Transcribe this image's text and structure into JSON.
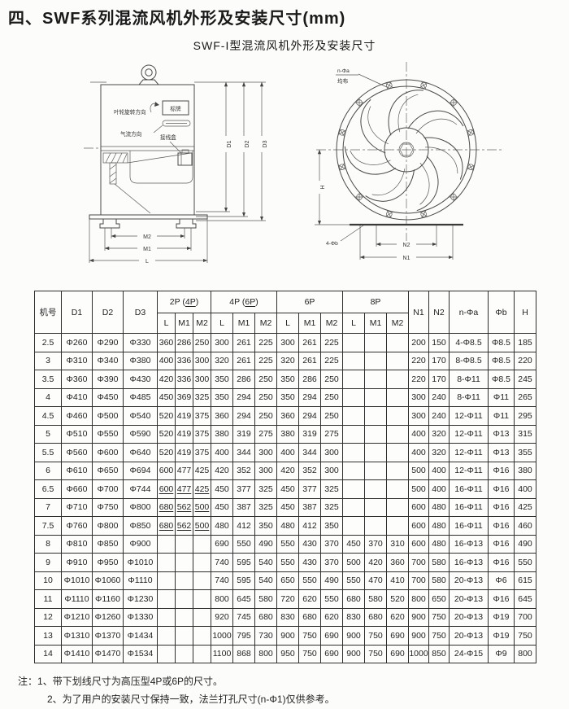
{
  "page": {
    "title": "四、SWF系列混流风机外形及安装尺寸(mm)",
    "subtitle": "SWF-I型混流风机外形及安装尺寸"
  },
  "drawing": {
    "side_view": {
      "rotation_label": "叶轮旋转方向",
      "nameplate_label": "标牌",
      "airflow_label": "气流方向",
      "junction_box_label": "接线盒",
      "dim_d1": "D1",
      "dim_d2": "D2",
      "dim_d3": "D3",
      "dim_m2": "M2",
      "dim_m1": "M1",
      "dim_l": "L"
    },
    "front_view": {
      "holes_label": "n-Φa",
      "holes_label2": "均布",
      "feet_holes_label": "4-Φb",
      "dim_n2": "N2",
      "dim_n1": "N1",
      "dim_h": "H"
    }
  },
  "table": {
    "headers": {
      "jihao": "机号",
      "d1": "D1",
      "d2": "D2",
      "d3": "D3",
      "g2p_pre": "2P (",
      "g2p_u": "4P",
      "g2p_post": ")",
      "g4p_pre": "4P (",
      "g4p_u": "6P",
      "g4p_post": ")",
      "g6p": "6P",
      "g8p": "8P",
      "l": "L",
      "m1": "M1",
      "m2": "M2",
      "n1": "N1",
      "n2": "N2",
      "nfa": "n-Φa",
      "fb": "Φb",
      "h": "H"
    },
    "rows": [
      {
        "no": "2.5",
        "d1": "Φ260",
        "d2": "Φ290",
        "d3": "Φ330",
        "p2": [
          "360",
          "286",
          "250"
        ],
        "p2u": false,
        "p4": [
          "300",
          "261",
          "225"
        ],
        "p6": [
          "300",
          "261",
          "225"
        ],
        "p8": [
          "",
          "",
          ""
        ],
        "n1": "200",
        "n2": "150",
        "na": "4-Φ8.5",
        "fb": "Φ8.5",
        "h": "185"
      },
      {
        "no": "3",
        "d1": "Φ310",
        "d2": "Φ340",
        "d3": "Φ380",
        "p2": [
          "400",
          "336",
          "300"
        ],
        "p2u": false,
        "p4": [
          "320",
          "261",
          "225"
        ],
        "p6": [
          "320",
          "261",
          "225"
        ],
        "p8": [
          "",
          "",
          ""
        ],
        "n1": "220",
        "n2": "170",
        "na": "8-Φ8.5",
        "fb": "Φ8.5",
        "h": "220"
      },
      {
        "no": "3.5",
        "d1": "Φ360",
        "d2": "Φ390",
        "d3": "Φ430",
        "p2": [
          "420",
          "336",
          "300"
        ],
        "p2u": false,
        "p4": [
          "350",
          "286",
          "250"
        ],
        "p6": [
          "350",
          "286",
          "250"
        ],
        "p8": [
          "",
          "",
          ""
        ],
        "n1": "220",
        "n2": "170",
        "na": "8-Φ11",
        "fb": "Φ8.5",
        "h": "245"
      },
      {
        "no": "4",
        "d1": "Φ410",
        "d2": "Φ450",
        "d3": "Φ485",
        "p2": [
          "450",
          "369",
          "325"
        ],
        "p2u": false,
        "p4": [
          "350",
          "294",
          "250"
        ],
        "p6": [
          "350",
          "294",
          "250"
        ],
        "p8": [
          "",
          "",
          ""
        ],
        "n1": "300",
        "n2": "240",
        "na": "8-Φ11",
        "fb": "Φ11",
        "h": "265"
      },
      {
        "no": "4.5",
        "d1": "Φ460",
        "d2": "Φ500",
        "d3": "Φ540",
        "p2": [
          "520",
          "419",
          "375"
        ],
        "p2u": false,
        "p4": [
          "360",
          "294",
          "250"
        ],
        "p6": [
          "360",
          "294",
          "250"
        ],
        "p8": [
          "",
          "",
          ""
        ],
        "n1": "300",
        "n2": "240",
        "na": "12-Φ11",
        "fb": "Φ11",
        "h": "295"
      },
      {
        "no": "5",
        "d1": "Φ510",
        "d2": "Φ550",
        "d3": "Φ590",
        "p2": [
          "520",
          "419",
          "375"
        ],
        "p2u": false,
        "p4": [
          "380",
          "319",
          "275"
        ],
        "p6": [
          "380",
          "319",
          "275"
        ],
        "p8": [
          "",
          "",
          ""
        ],
        "n1": "400",
        "n2": "320",
        "na": "12-Φ11",
        "fb": "Φ13",
        "h": "315"
      },
      {
        "no": "5.5",
        "d1": "Φ560",
        "d2": "Φ600",
        "d3": "Φ640",
        "p2": [
          "520",
          "419",
          "375"
        ],
        "p2u": false,
        "p4": [
          "400",
          "344",
          "300"
        ],
        "p6": [
          "400",
          "344",
          "300"
        ],
        "p8": [
          "",
          "",
          ""
        ],
        "n1": "400",
        "n2": "320",
        "na": "12-Φ11",
        "fb": "Φ13",
        "h": "355"
      },
      {
        "no": "6",
        "d1": "Φ610",
        "d2": "Φ650",
        "d3": "Φ694",
        "p2": [
          "600",
          "477",
          "425"
        ],
        "p2u": false,
        "p4": [
          "420",
          "352",
          "300"
        ],
        "p6": [
          "420",
          "352",
          "300"
        ],
        "p8": [
          "",
          "",
          ""
        ],
        "n1": "500",
        "n2": "400",
        "na": "12-Φ11",
        "fb": "Φ16",
        "h": "380"
      },
      {
        "no": "6.5",
        "d1": "Φ660",
        "d2": "Φ700",
        "d3": "Φ744",
        "p2": [
          "600",
          "477",
          "425"
        ],
        "p2u": true,
        "p4": [
          "450",
          "377",
          "325"
        ],
        "p6": [
          "450",
          "377",
          "325"
        ],
        "p8": [
          "",
          "",
          ""
        ],
        "n1": "500",
        "n2": "400",
        "na": "16-Φ11",
        "fb": "Φ16",
        "h": "400"
      },
      {
        "no": "7",
        "d1": "Φ710",
        "d2": "Φ750",
        "d3": "Φ800",
        "p2": [
          "680",
          "562",
          "500"
        ],
        "p2u": true,
        "p4": [
          "450",
          "387",
          "325"
        ],
        "p6": [
          "450",
          "387",
          "325"
        ],
        "p8": [
          "",
          "",
          ""
        ],
        "n1": "600",
        "n2": "480",
        "na": "16-Φ11",
        "fb": "Φ16",
        "h": "425"
      },
      {
        "no": "7.5",
        "d1": "Φ760",
        "d2": "Φ800",
        "d3": "Φ850",
        "p2": [
          "680",
          "562",
          "500"
        ],
        "p2u": true,
        "p4": [
          "480",
          "412",
          "350"
        ],
        "p6": [
          "480",
          "412",
          "350"
        ],
        "p8": [
          "",
          "",
          ""
        ],
        "n1": "600",
        "n2": "480",
        "na": "16-Φ11",
        "fb": "Φ16",
        "h": "460"
      },
      {
        "no": "8",
        "d1": "Φ810",
        "d2": "Φ850",
        "d3": "Φ900",
        "p2": [
          "",
          "",
          ""
        ],
        "p2u": false,
        "p4": [
          "690",
          "550",
          "490"
        ],
        "p6": [
          "550",
          "430",
          "370"
        ],
        "p8": [
          "450",
          "370",
          "310"
        ],
        "n1": "600",
        "n2": "480",
        "na": "16-Φ13",
        "fb": "Φ16",
        "h": "490"
      },
      {
        "no": "9",
        "d1": "Φ910",
        "d2": "Φ950",
        "d3": "Φ1010",
        "p2": [
          "",
          "",
          ""
        ],
        "p2u": false,
        "p4": [
          "740",
          "595",
          "540"
        ],
        "p6": [
          "550",
          "430",
          "370"
        ],
        "p8": [
          "500",
          "420",
          "360"
        ],
        "n1": "700",
        "n2": "580",
        "na": "16-Φ13",
        "fb": "Φ16",
        "h": "550"
      },
      {
        "no": "10",
        "d1": "Φ1010",
        "d2": "Φ1060",
        "d3": "Φ1110",
        "p2": [
          "",
          "",
          ""
        ],
        "p2u": false,
        "p4": [
          "740",
          "595",
          "540"
        ],
        "p6": [
          "650",
          "550",
          "490"
        ],
        "p8": [
          "550",
          "470",
          "410"
        ],
        "n1": "700",
        "n2": "580",
        "na": "20-Φ13",
        "fb": "Φ6",
        "h": "615"
      },
      {
        "no": "11",
        "d1": "Φ1110",
        "d2": "Φ1160",
        "d3": "Φ1230",
        "p2": [
          "",
          "",
          ""
        ],
        "p2u": false,
        "p4": [
          "800",
          "645",
          "580"
        ],
        "p6": [
          "720",
          "620",
          "550"
        ],
        "p8": [
          "680",
          "580",
          "520"
        ],
        "n1": "800",
        "n2": "650",
        "na": "20-Φ13",
        "fb": "Φ16",
        "h": "645"
      },
      {
        "no": "12",
        "d1": "Φ1210",
        "d2": "Φ1260",
        "d3": "Φ1330",
        "p2": [
          "",
          "",
          ""
        ],
        "p2u": false,
        "p4": [
          "920",
          "745",
          "680"
        ],
        "p6": [
          "830",
          "680",
          "620"
        ],
        "p8": [
          "830",
          "680",
          "620"
        ],
        "n1": "900",
        "n2": "750",
        "na": "20-Φ13",
        "fb": "Φ19",
        "h": "700"
      },
      {
        "no": "13",
        "d1": "Φ1310",
        "d2": "Φ1370",
        "d3": "Φ1434",
        "p2": [
          "",
          "",
          ""
        ],
        "p2u": false,
        "p4": [
          "1000",
          "795",
          "730"
        ],
        "p6": [
          "900",
          "750",
          "690"
        ],
        "p8": [
          "900",
          "750",
          "690"
        ],
        "n1": "900",
        "n2": "750",
        "na": "20-Φ13",
        "fb": "Φ19",
        "h": "750"
      },
      {
        "no": "14",
        "d1": "Φ1410",
        "d2": "Φ1470",
        "d3": "Φ1534",
        "p2": [
          "",
          "",
          ""
        ],
        "p2u": false,
        "p4": [
          "1100",
          "868",
          "800"
        ],
        "p6": [
          "950",
          "750",
          "690"
        ],
        "p8": [
          "900",
          "750",
          "690"
        ],
        "n1": "1000",
        "n2": "850",
        "na": "24-Φ15",
        "fb": "Φ9",
        "h": "800"
      }
    ]
  },
  "notes": {
    "prefix": "注：",
    "line1": "1、带下划线尺寸为高压型4P或6P的尺寸。",
    "line2": "2、为了用户的安装尺寸保持一致，法兰打孔尺寸(n-Φ1)仅供参考。"
  }
}
